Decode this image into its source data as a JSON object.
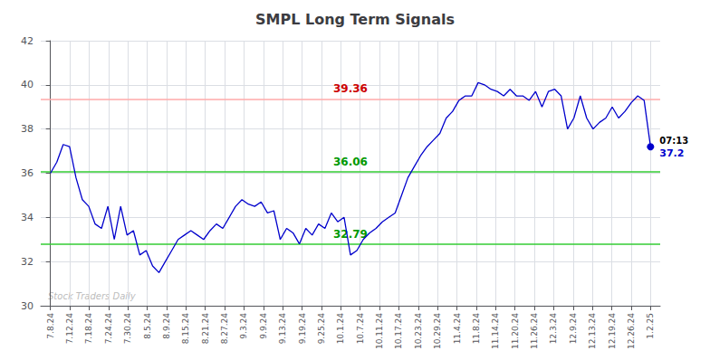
{
  "chart_data": {
    "type": "line",
    "title": "SMPL Long Term Signals",
    "color": "#0000cc",
    "x": [
      0,
      0.3298,
      0.6596,
      0.9894,
      1.3191,
      1.6489,
      1.9787,
      2.3085,
      2.6383,
      2.9681,
      3.2979,
      3.6277,
      3.9574,
      4.2872,
      4.617,
      4.9468,
      5.2766,
      5.6064,
      5.9362,
      6.266,
      6.5957,
      6.9255,
      7.2553,
      7.5851,
      7.9149,
      8.2447,
      8.5745,
      8.9043,
      9.234,
      9.5638,
      9.8936,
      10.2234,
      10.5532,
      10.883,
      11.2128,
      11.5426,
      11.8723,
      12.2021,
      12.5319,
      12.8617,
      13.1915,
      13.5213,
      13.8511,
      14.1809,
      14.5106,
      14.8404,
      15.1702,
      15.5,
      15.8298,
      16.1596,
      16.4894,
      16.8191,
      17.1489,
      17.4787,
      17.8085,
      18.1383,
      18.4681,
      18.7979,
      19.1277,
      19.4574,
      19.7872,
      20.117,
      20.4468,
      20.7766,
      21.1064,
      21.4362,
      21.766,
      22.0957,
      22.4255,
      22.7553,
      23.0851,
      23.4149,
      23.7447,
      24.0745,
      24.4043,
      24.734,
      25.0638,
      25.3936,
      25.7234,
      26.0532,
      26.383,
      26.7128,
      27.0426,
      27.3723,
      27.7021,
      28.0319,
      28.3617,
      28.6915,
      29.0213,
      29.3511,
      29.6809,
      30.0106,
      30.3404,
      30.6702,
      31
    ],
    "values": [
      36.0,
      36.5,
      37.3,
      37.2,
      35.8,
      34.8,
      34.5,
      33.7,
      33.5,
      34.5,
      33.0,
      34.5,
      33.2,
      33.4,
      32.3,
      32.5,
      31.8,
      31.5,
      32.0,
      32.5,
      33.0,
      33.2,
      33.4,
      33.2,
      33.0,
      33.4,
      33.7,
      33.5,
      34.0,
      34.5,
      34.8,
      34.6,
      34.5,
      34.7,
      34.2,
      34.3,
      33.0,
      33.5,
      33.3,
      32.8,
      33.5,
      33.2,
      33.7,
      33.5,
      34.2,
      33.8,
      34.0,
      32.3,
      32.5,
      33.0,
      33.3,
      33.5,
      33.8,
      34.0,
      34.2,
      35.0,
      35.8,
      36.3,
      36.8,
      37.2,
      37.5,
      37.8,
      38.5,
      38.8,
      39.3,
      39.5,
      39.5,
      40.1,
      40.0,
      39.8,
      39.7,
      39.5,
      39.8,
      39.5,
      39.5,
      39.3,
      39.7,
      39.0,
      39.7,
      39.8,
      39.5,
      38.0,
      38.5,
      39.5,
      38.5,
      38.0,
      38.3,
      38.5,
      39.0,
      38.5,
      38.8,
      39.2,
      39.5,
      39.3,
      37.2
    ],
    "xlim": [
      -0.5,
      31.5
    ],
    "xticks": [
      {
        "value": 0,
        "label": "7.8.24"
      },
      {
        "value": 1,
        "label": "7.12.24"
      },
      {
        "value": 2,
        "label": "7.18.24"
      },
      {
        "value": 3,
        "label": "7.24.24"
      },
      {
        "value": 4,
        "label": "7.30.24"
      },
      {
        "value": 5,
        "label": "8.5.24"
      },
      {
        "value": 6,
        "label": "8.9.24"
      },
      {
        "value": 7,
        "label": "8.15.24"
      },
      {
        "value": 8,
        "label": "8.21.24"
      },
      {
        "value": 9,
        "label": "8.27.24"
      },
      {
        "value": 10,
        "label": "9.3.24"
      },
      {
        "value": 11,
        "label": "9.9.24"
      },
      {
        "value": 12,
        "label": "9.13.24"
      },
      {
        "value": 13,
        "label": "9.19.24"
      },
      {
        "value": 14,
        "label": "9.25.24"
      },
      {
        "value": 15,
        "label": "10.1.24"
      },
      {
        "value": 16,
        "label": "10.7.24"
      },
      {
        "value": 17,
        "label": "10.11.24"
      },
      {
        "value": 18,
        "label": "10.17.24"
      },
      {
        "value": 19,
        "label": "10.23.24"
      },
      {
        "value": 20,
        "label": "10.29.24"
      },
      {
        "value": 21,
        "label": "11.4.24"
      },
      {
        "value": 22,
        "label": "11.8.24"
      },
      {
        "value": 23,
        "label": "11.14.24"
      },
      {
        "value": 24,
        "label": "11.20.24"
      },
      {
        "value": 25,
        "label": "11.26.24"
      },
      {
        "value": 26,
        "label": "12.3.24"
      },
      {
        "value": 27,
        "label": "12.9.24"
      },
      {
        "value": 28,
        "label": "12.13.24"
      },
      {
        "value": 29,
        "label": "12.19.24"
      },
      {
        "value": 30,
        "label": "12.26.24"
      },
      {
        "value": 31,
        "label": "1.2.25"
      }
    ],
    "ylim": [
      30,
      42
    ],
    "yticks": [
      30,
      32,
      34,
      36,
      38,
      40,
      42
    ],
    "grid": true,
    "hlines": [
      {
        "value": 39.36,
        "color": "#ffaaaa",
        "label": {
          "text": "39.36",
          "color": "#cc0000"
        }
      },
      {
        "value": 36.06,
        "color": "#33cc33",
        "label": {
          "text": "36.06",
          "color": "#009900"
        }
      },
      {
        "value": 32.79,
        "color": "#33cc33",
        "label": {
          "text": "32.79",
          "color": "#009900"
        }
      }
    ],
    "last_point": {
      "marker": "circle",
      "labels": [
        {
          "text": "07:13",
          "color": "#000000"
        },
        {
          "text": "37.2",
          "color": "#0000cc"
        }
      ]
    },
    "watermark": "Stock Traders Daily"
  }
}
